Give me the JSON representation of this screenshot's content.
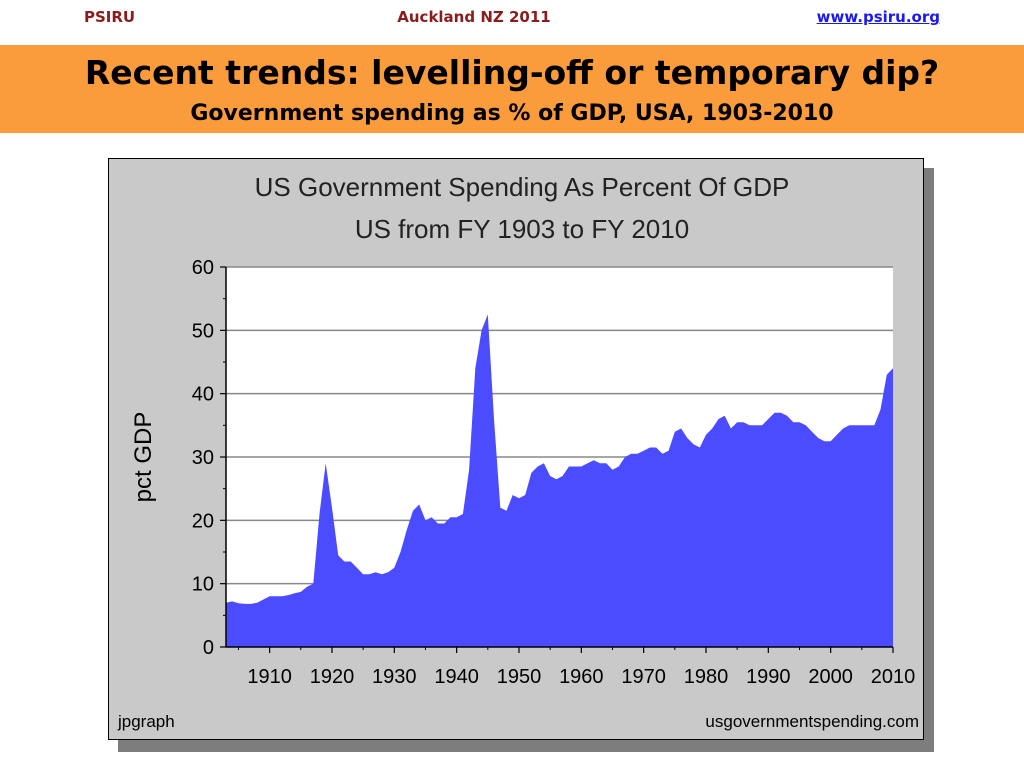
{
  "header": {
    "left": "PSIRU",
    "center": "Auckland NZ 2011",
    "right": "www.psiru.org"
  },
  "banner": {
    "title": "Recent trends: levelling-off or temporary dip?",
    "subtitle": "Government spending as % of GDP, USA, 1903-2010"
  },
  "colors": {
    "banner": "#fa9b3c",
    "area_fill": "#4b4bff",
    "plot_bg": "#ffffff",
    "frame_bg": "#c9c9c9"
  },
  "chart_data": {
    "type": "area",
    "title": "US Government Spending As Percent Of GDP",
    "subtitle": "US from FY 1903 to FY 2010",
    "ylabel": "pct GDP",
    "xlabel": "",
    "xlim": [
      1903,
      2010
    ],
    "ylim": [
      0,
      60
    ],
    "grid": true,
    "x_ticks": [
      1910,
      1920,
      1930,
      1940,
      1950,
      1960,
      1970,
      1980,
      1990,
      2000,
      2010
    ],
    "y_ticks": [
      0,
      10,
      20,
      30,
      40,
      50,
      60
    ],
    "credit_left": "jpgraph",
    "credit_right": "usgovernmentspending.com",
    "series": [
      {
        "x": [
          1903,
          1904,
          1905,
          1906,
          1907,
          1908,
          1909,
          1910,
          1911,
          1912,
          1913,
          1914,
          1915,
          1916,
          1917,
          1918,
          1919,
          1920,
          1921,
          1922,
          1923,
          1924,
          1925,
          1926,
          1927,
          1928,
          1929,
          1930,
          1931,
          1932,
          1933,
          1934,
          1935,
          1936,
          1937,
          1938,
          1939,
          1940,
          1941,
          1942,
          1943,
          1944,
          1945,
          1946,
          1947,
          1948,
          1949,
          1950,
          1951,
          1952,
          1953,
          1954,
          1955,
          1956,
          1957,
          1958,
          1959,
          1960,
          1961,
          1962,
          1963,
          1964,
          1965,
          1966,
          1967,
          1968,
          1969,
          1970,
          1971,
          1972,
          1973,
          1974,
          1975,
          1976,
          1977,
          1978,
          1979,
          1980,
          1981,
          1982,
          1983,
          1984,
          1985,
          1986,
          1987,
          1988,
          1989,
          1990,
          1991,
          1992,
          1993,
          1994,
          1995,
          1996,
          1997,
          1998,
          1999,
          2000,
          2001,
          2002,
          2003,
          2004,
          2005,
          2006,
          2007,
          2008,
          2009,
          2010
        ],
        "values": [
          7.0,
          7.2,
          6.9,
          6.8,
          6.8,
          7.0,
          7.5,
          8.0,
          8.0,
          8.0,
          8.2,
          8.5,
          8.7,
          9.5,
          10.0,
          21.0,
          29.0,
          22.0,
          14.5,
          13.5,
          13.5,
          12.5,
          11.5,
          11.5,
          11.8,
          11.5,
          11.8,
          12.5,
          15.0,
          18.5,
          21.5,
          22.5,
          20.0,
          20.5,
          19.5,
          19.5,
          20.5,
          20.5,
          21.0,
          28.0,
          44.0,
          50.0,
          52.5,
          36.0,
          22.0,
          21.5,
          24.0,
          23.5,
          24.0,
          27.5,
          28.5,
          29.0,
          27.0,
          26.5,
          27.0,
          28.5,
          28.5,
          28.5,
          29.0,
          29.5,
          29.0,
          29.0,
          28.0,
          28.5,
          30.0,
          30.5,
          30.5,
          31.0,
          31.5,
          31.5,
          30.5,
          31.0,
          34.0,
          34.5,
          33.0,
          32.0,
          31.5,
          33.5,
          34.5,
          36.0,
          36.5,
          34.5,
          35.5,
          35.5,
          35.0,
          35.0,
          35.0,
          36.0,
          37.0,
          37.0,
          36.5,
          35.5,
          35.5,
          35.0,
          34.0,
          33.0,
          32.5,
          32.5,
          33.5,
          34.5,
          35.0,
          35.0,
          35.0,
          35.0,
          35.0,
          37.5,
          43.0,
          44.0
        ]
      }
    ]
  }
}
